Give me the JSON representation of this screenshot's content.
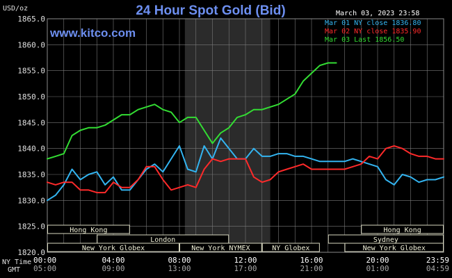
{
  "chart_data": {
    "type": "line",
    "title": "24 Hour Spot Gold (Bid)",
    "watermark": "www.kitco.com",
    "date": "March 03, 2023 23:58",
    "y_unit": "USD/oz",
    "ylim": [
      1820,
      1865
    ],
    "yticks": [
      "1865.0",
      "1860.0",
      "1855.0",
      "1850.0",
      "1845.0",
      "1840.0",
      "1835.0",
      "1830.0",
      "1825.0",
      "1820.0"
    ],
    "x_row_ny_label": "NY Time",
    "x_row_gmt_label": "GMT",
    "xticks_ny": [
      "00:00",
      "04:00",
      "08:00",
      "12:00",
      "16:00",
      "20:00",
      "23:59"
    ],
    "xticks_gmt": [
      "05:00",
      "09:00",
      "13:00",
      "17:00",
      "21:00",
      "01:00",
      "04:59"
    ],
    "xlim_hours": [
      0,
      24
    ],
    "nymex_session_hours": [
      8.33,
      13.5
    ],
    "grid": true,
    "legend_position": "top-right",
    "legend": [
      {
        "label": "Mar 01 NY close 1836.80",
        "color": "#33b4f0"
      },
      {
        "label": "Mar 02 NY close 1835.90",
        "color": "#ff2a2a"
      },
      {
        "label": "Mar 03 Last 1856.50",
        "color": "#33dd33"
      }
    ],
    "sessions": [
      {
        "name": "Hong Kong",
        "row": 0,
        "hours": [
          0,
          5
        ]
      },
      {
        "name": "Hong Kong",
        "row": 0,
        "hours": [
          19,
          24
        ]
      },
      {
        "name": "London",
        "row": 1,
        "hours": [
          3,
          11
        ]
      },
      {
        "name": "Sydney",
        "row": 1,
        "hours": [
          17,
          24
        ]
      },
      {
        "name": "New York Globex",
        "row": 2,
        "hours": [
          0,
          8
        ]
      },
      {
        "name": "New York NYMEX",
        "row": 2,
        "hours": [
          8,
          13
        ]
      },
      {
        "name": "NY Globex",
        "row": 2,
        "hours": [
          13,
          16.5
        ]
      },
      {
        "name": "New York Globex",
        "row": 2,
        "hours": [
          18,
          24
        ]
      }
    ],
    "series": [
      {
        "name": "Mar 01 NY close 1836.80",
        "color": "#33b4f0",
        "x": [
          0,
          0.5,
          1,
          1.5,
          2,
          2.5,
          3,
          3.5,
          4,
          4.5,
          5,
          5.5,
          6,
          6.5,
          7,
          7.5,
          8,
          8.5,
          9,
          9.5,
          10,
          10.5,
          11,
          11.5,
          12,
          12.5,
          13,
          13.5,
          14,
          14.5,
          15,
          15.5,
          16,
          16.5,
          17,
          17.5,
          18,
          18.5,
          19,
          19.5,
          20,
          20.5,
          21,
          21.5,
          22,
          22.5,
          23,
          23.5,
          24
        ],
        "y": [
          1830,
          1831,
          1833,
          1836,
          1834,
          1835,
          1835.5,
          1833,
          1834.5,
          1832,
          1832,
          1834,
          1836,
          1837,
          1835.5,
          1838,
          1840.5,
          1836,
          1835.5,
          1840.5,
          1838,
          1842,
          1840,
          1838,
          1838,
          1840,
          1838.5,
          1838.5,
          1839,
          1839,
          1838.5,
          1838.5,
          1838,
          1837.5,
          1837.5,
          1837.5,
          1837.5,
          1838,
          1837.5,
          1837,
          1836.5,
          1834,
          1833,
          1835,
          1834.5,
          1833.5,
          1834,
          1834,
          1834.5
        ]
      },
      {
        "name": "Mar 02 NY close 1835.90",
        "color": "#ff2a2a",
        "x": [
          0,
          0.5,
          1,
          1.5,
          2,
          2.5,
          3,
          3.5,
          4,
          4.5,
          5,
          5.5,
          6,
          6.5,
          7,
          7.5,
          8,
          8.5,
          9,
          9.5,
          10,
          10.5,
          11,
          11.5,
          12,
          12.5,
          13,
          13.5,
          14,
          14.5,
          15,
          15.5,
          16,
          16.5,
          17,
          17.5,
          18,
          18.5,
          19,
          19.5,
          20,
          20.5,
          21,
          21.5,
          22,
          22.5,
          23,
          23.5,
          24
        ],
        "y": [
          1833.5,
          1833,
          1833.5,
          1833.5,
          1832,
          1832,
          1831.5,
          1831.5,
          1833.5,
          1832.5,
          1832.5,
          1834,
          1836.5,
          1836.5,
          1834,
          1832,
          1832.5,
          1833,
          1832.5,
          1836,
          1838,
          1837.5,
          1838,
          1838,
          1838,
          1834.5,
          1833.5,
          1834,
          1835.5,
          1836,
          1836.5,
          1837,
          1836,
          1836,
          1836,
          1836,
          1836,
          1836.5,
          1837,
          1838.5,
          1838,
          1840,
          1840.5,
          1840,
          1839,
          1838.5,
          1838.5,
          1838,
          1838
        ]
      },
      {
        "name": "Mar 03 Last 1856.50",
        "color": "#33dd33",
        "x": [
          0,
          0.5,
          1,
          1.5,
          2,
          2.5,
          3,
          3.5,
          4,
          4.5,
          5,
          5.5,
          6,
          6.5,
          7,
          7.5,
          8,
          8.5,
          9,
          9.5,
          10,
          10.5,
          11,
          11.5,
          12,
          12.5,
          13,
          13.5,
          14,
          14.5,
          15,
          15.5,
          16,
          16.5,
          17,
          17.5
        ],
        "y": [
          1838,
          1838.5,
          1839,
          1842.5,
          1843.5,
          1844,
          1844,
          1844.5,
          1845.5,
          1846.5,
          1846.5,
          1847.5,
          1848,
          1848.5,
          1847.5,
          1847,
          1845,
          1846,
          1846,
          1843.5,
          1841,
          1843,
          1844,
          1846,
          1846.5,
          1847.5,
          1847.5,
          1848,
          1848.5,
          1849.5,
          1850.5,
          1853,
          1854.5,
          1856,
          1856.5,
          1856.5
        ]
      }
    ]
  }
}
